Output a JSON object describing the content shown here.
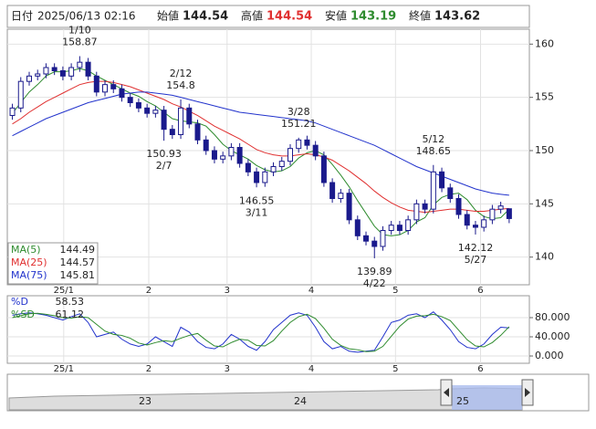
{
  "header": {
    "date_label": "日付",
    "datetime": "2025/06/13 02:16",
    "open_label": "始値",
    "high_label": "高値",
    "low_label": "安値",
    "close_label": "終値"
  },
  "chart_data": [
    {
      "type": "candlestick",
      "xlim": [
        -0.6,
        61.4
      ],
      "ylim": [
        137.4,
        161.4
      ],
      "yticks": [
        140,
        145,
        150,
        155,
        160
      ],
      "xticks": [
        {
          "value": 6.1,
          "label": "25/1"
        },
        {
          "value": 16.2,
          "label": "2"
        },
        {
          "value": 25.5,
          "label": "3"
        },
        {
          "value": 35.5,
          "label": "4"
        },
        {
          "value": 45.5,
          "label": "5"
        },
        {
          "value": 55.6,
          "label": "6"
        }
      ],
      "up_color": "#ffffff",
      "down_color": "#1a1a8c",
      "grid": true,
      "open": [
        153.3,
        154.0,
        156.5,
        157.0,
        157.2,
        157.8,
        157.5,
        157.0,
        157.8,
        158.3,
        157.0,
        155.5,
        156.2,
        155.8,
        155.0,
        154.5,
        154.0,
        153.5,
        153.8,
        152.0,
        151.5,
        154.0,
        152.5,
        151.0,
        150.0,
        149.2,
        149.5,
        150.3,
        148.8,
        148.0,
        147.0,
        148.0,
        148.5,
        149.0,
        150.2,
        151.0,
        150.5,
        149.5,
        147.0,
        145.5,
        146.0,
        143.5,
        142.0,
        141.5,
        141.0,
        142.5,
        143.0,
        142.5,
        143.5,
        145.0,
        144.5,
        148.0,
        146.5,
        145.5,
        144.0,
        143.0,
        142.8,
        143.5,
        144.5,
        144.54
      ],
      "high": [
        154.4,
        156.9,
        157.4,
        157.6,
        158.2,
        158.2,
        157.9,
        158.2,
        158.87,
        158.7,
        157.4,
        156.6,
        156.6,
        156.2,
        155.4,
        154.9,
        154.4,
        154.2,
        154.2,
        152.4,
        154.8,
        154.4,
        152.9,
        151.4,
        150.4,
        149.9,
        150.7,
        150.7,
        149.2,
        148.4,
        148.4,
        148.9,
        149.4,
        150.6,
        151.21,
        151.4,
        150.9,
        149.9,
        147.4,
        146.4,
        146.4,
        143.9,
        142.4,
        141.9,
        142.9,
        143.4,
        143.4,
        143.9,
        145.4,
        145.4,
        148.65,
        148.4,
        146.9,
        145.9,
        144.4,
        143.4,
        143.9,
        144.9,
        145.2,
        144.54
      ],
      "low": [
        152.9,
        153.6,
        156.1,
        156.6,
        156.8,
        157.1,
        156.6,
        156.6,
        157.4,
        156.6,
        155.1,
        155.1,
        155.4,
        154.6,
        154.1,
        153.6,
        153.1,
        153.1,
        150.93,
        151.1,
        151.1,
        152.1,
        150.6,
        149.6,
        148.8,
        148.8,
        149.1,
        148.4,
        147.6,
        146.55,
        146.6,
        147.6,
        148.1,
        148.6,
        149.8,
        150.1,
        149.1,
        146.6,
        145.1,
        145.1,
        143.1,
        141.6,
        141.1,
        139.89,
        140.6,
        142.1,
        142.1,
        142.1,
        143.1,
        144.1,
        144.1,
        146.1,
        145.1,
        143.6,
        142.6,
        142.12,
        142.4,
        143.1,
        144.1,
        143.19
      ],
      "close": [
        154.0,
        156.5,
        157.0,
        157.2,
        157.8,
        157.5,
        157.0,
        157.8,
        158.3,
        157.0,
        155.5,
        156.2,
        155.8,
        155.0,
        154.5,
        154.0,
        153.5,
        153.8,
        152.0,
        151.5,
        154.0,
        152.5,
        151.0,
        150.0,
        149.2,
        149.5,
        150.3,
        148.8,
        148.0,
        147.0,
        148.0,
        148.5,
        149.0,
        150.2,
        151.0,
        150.5,
        149.5,
        147.0,
        145.5,
        146.0,
        143.5,
        142.0,
        141.5,
        141.0,
        142.5,
        143.0,
        142.5,
        143.5,
        145.0,
        144.5,
        148.0,
        146.5,
        145.5,
        144.0,
        143.0,
        142.8,
        143.5,
        144.5,
        144.8,
        143.62
      ],
      "series": [
        {
          "name": "MA(5)",
          "color": "#2e8b2e",
          "values": [
            153.5,
            154.5,
            155.5,
            156.2,
            157.0,
            157.4,
            157.4,
            157.5,
            157.7,
            157.5,
            157.0,
            156.6,
            156.2,
            155.8,
            155.4,
            155.1,
            154.6,
            154.2,
            153.6,
            153.0,
            152.8,
            152.7,
            152.6,
            152.3,
            151.5,
            150.6,
            150.0,
            149.6,
            149.2,
            148.6,
            148.2,
            148.0,
            148.1,
            148.5,
            149.3,
            149.8,
            150.0,
            149.6,
            148.7,
            147.7,
            146.6,
            145.3,
            144.1,
            142.9,
            142.1,
            142.0,
            142.1,
            142.5,
            143.3,
            143.7,
            144.9,
            145.6,
            145.9,
            146.0,
            145.4,
            144.4,
            143.8,
            143.6,
            143.7,
            144.49
          ]
        },
        {
          "name": "MA(25)",
          "color": "#e03030",
          "values": [
            152.5,
            153.0,
            153.6,
            154.1,
            154.6,
            155.0,
            155.4,
            155.8,
            156.2,
            156.4,
            156.5,
            156.5,
            156.4,
            156.2,
            156.0,
            155.7,
            155.4,
            155.1,
            154.8,
            154.4,
            154.1,
            153.7,
            153.3,
            152.8,
            152.3,
            151.9,
            151.5,
            151.1,
            150.6,
            150.1,
            149.8,
            149.6,
            149.5,
            149.5,
            149.6,
            149.7,
            149.6,
            149.4,
            149.1,
            148.6,
            148.1,
            147.5,
            146.9,
            146.2,
            145.6,
            145.1,
            144.7,
            144.4,
            144.3,
            144.2,
            144.3,
            144.4,
            144.5,
            144.5,
            144.4,
            144.3,
            144.3,
            144.4,
            144.5,
            144.57
          ]
        },
        {
          "name": "MA(75)",
          "color": "#2233cc",
          "values": [
            151.4,
            151.8,
            152.2,
            152.6,
            153.0,
            153.3,
            153.6,
            153.9,
            154.2,
            154.5,
            154.7,
            154.9,
            155.1,
            155.3,
            155.4,
            155.5,
            155.5,
            155.4,
            155.3,
            155.2,
            155.0,
            154.8,
            154.6,
            154.4,
            154.2,
            154.0,
            153.8,
            153.6,
            153.5,
            153.4,
            153.3,
            153.2,
            153.1,
            153.0,
            152.9,
            152.8,
            152.6,
            152.3,
            152.0,
            151.7,
            151.4,
            151.1,
            150.8,
            150.5,
            150.1,
            149.7,
            149.3,
            148.9,
            148.5,
            148.2,
            147.9,
            147.6,
            147.3,
            147.0,
            146.7,
            146.4,
            146.2,
            146.0,
            145.9,
            145.81
          ]
        }
      ],
      "annotations": [
        {
          "x": 8,
          "date": "1/10",
          "anchor": "high"
        },
        {
          "x": 20,
          "date": "2/12",
          "anchor": "high"
        },
        {
          "x": 18,
          "date": "2/7",
          "anchor": "low"
        },
        {
          "x": 29,
          "date": "3/11",
          "anchor": "low"
        },
        {
          "x": 34,
          "date": "3/28",
          "anchor": "high"
        },
        {
          "x": 43,
          "date": "4/22",
          "anchor": "low"
        },
        {
          "x": 50,
          "date": "5/12",
          "anchor": "high"
        },
        {
          "x": 55,
          "date": "5/27",
          "anchor": "low"
        }
      ]
    },
    {
      "type": "line",
      "xlim": [
        -0.6,
        61.4
      ],
      "ylim": [
        -15.2,
        125.7
      ],
      "yticks": [
        {
          "value": 0,
          "label": "0.000"
        },
        {
          "value": 40,
          "label": "40.000"
        },
        {
          "value": 80,
          "label": "80.000"
        }
      ],
      "xticks": [
        {
          "value": 6.1,
          "label": "25/1"
        },
        {
          "value": 16.2,
          "label": "2"
        },
        {
          "value": 25.5,
          "label": "3"
        },
        {
          "value": 35.5,
          "label": "4"
        },
        {
          "value": 45.5,
          "label": "5"
        },
        {
          "value": 55.6,
          "label": "6"
        }
      ],
      "grid": true,
      "series": [
        {
          "name": "%D",
          "color": "#2233cc",
          "values": [
            85,
            88,
            90,
            88,
            85,
            80,
            75,
            82,
            88,
            70,
            40,
            45,
            50,
            35,
            25,
            20,
            25,
            40,
            30,
            20,
            60,
            50,
            30,
            18,
            15,
            25,
            45,
            35,
            20,
            12,
            30,
            55,
            70,
            85,
            90,
            85,
            60,
            30,
            15,
            20,
            10,
            8,
            10,
            12,
            40,
            70,
            75,
            85,
            88,
            80,
            92,
            75,
            55,
            30,
            18,
            15,
            25,
            45,
            60,
            58.53
          ]
        },
        {
          "name": "%SD",
          "color": "#2e8b2e",
          "values": [
            80,
            84,
            88,
            89,
            87,
            84,
            80,
            79,
            82,
            80,
            66,
            52,
            45,
            43,
            37,
            27,
            23,
            28,
            32,
            30,
            37,
            43,
            47,
            33,
            21,
            19,
            28,
            35,
            33,
            22,
            21,
            32,
            52,
            70,
            82,
            87,
            78,
            58,
            35,
            22,
            15,
            13,
            9,
            10,
            20,
            41,
            62,
            77,
            83,
            84,
            87,
            82,
            74,
            54,
            34,
            21,
            19,
            28,
            43,
            61.12
          ]
        }
      ]
    }
  ],
  "navigator": {
    "labels": [
      "23",
      "24",
      "25"
    ]
  }
}
